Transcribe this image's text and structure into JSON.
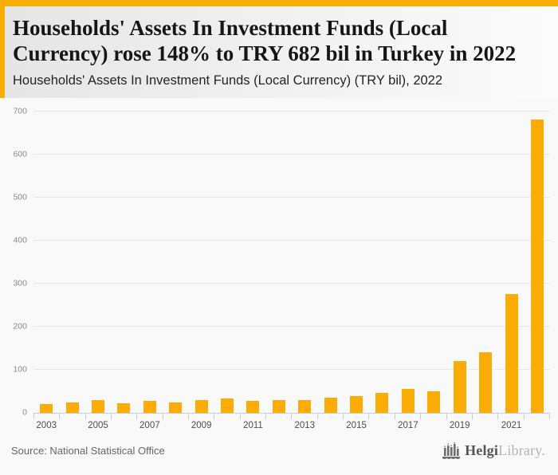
{
  "header": {
    "title": "Households' Assets In Investment Funds (Local Currency) rose 148% to TRY 682 bil in Turkey in 2022",
    "subtitle": "Households' Assets In Investment Funds (Local Currency) (TRY bil), 2022"
  },
  "footer": {
    "source": "Source: National Statistical Office",
    "logo_primary": "Helgi",
    "logo_secondary": "Library."
  },
  "colors": {
    "accent": "#f8ae00",
    "bar": "#fbad05",
    "axis": "#c2cbe2",
    "gridline": "#e8e8e8"
  },
  "chart_data": {
    "type": "bar",
    "title": "Households' Assets In Investment Funds (Local Currency) (TRY bil), 2022",
    "xlabel": "",
    "ylabel": "",
    "categories": [
      "2003",
      "2004",
      "2005",
      "2006",
      "2007",
      "2008",
      "2009",
      "2010",
      "2011",
      "2012",
      "2013",
      "2014",
      "2015",
      "2016",
      "2017",
      "2018",
      "2019",
      "2020",
      "2021",
      "2022"
    ],
    "values": [
      20,
      24,
      29,
      21,
      27,
      23,
      29,
      33,
      27,
      30,
      29,
      35,
      39,
      45,
      56,
      50,
      120,
      140,
      275,
      682
    ],
    "ylim": [
      0,
      700
    ],
    "yticks": [
      0,
      100,
      200,
      300,
      400,
      500,
      600,
      700
    ],
    "x_labeled_categories": [
      "2003",
      "2005",
      "2007",
      "2009",
      "2011",
      "2013",
      "2015",
      "2017",
      "2019",
      "2021"
    ],
    "grid": "horizontal",
    "legend": "none",
    "bar_color": "#fbad05"
  }
}
